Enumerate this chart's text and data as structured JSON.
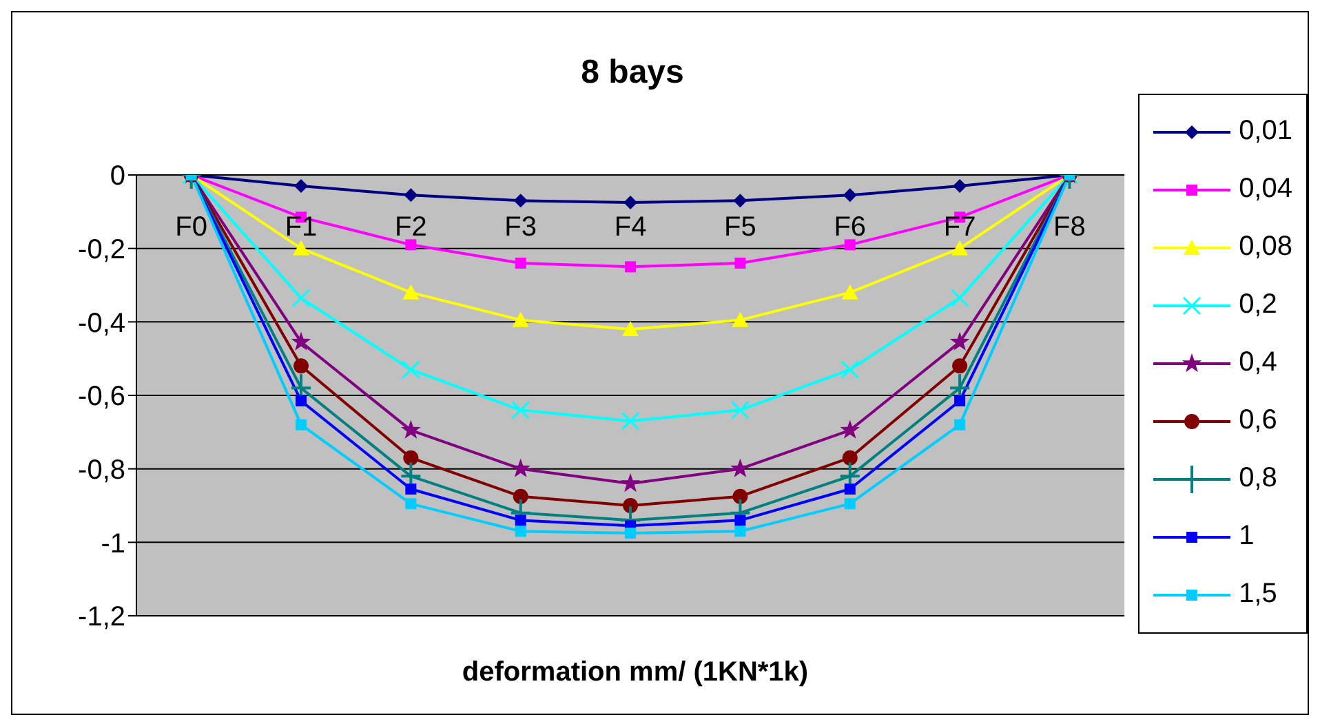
{
  "chart_data": {
    "type": "line",
    "title": "8 bays",
    "xlabel": "deformation mm/ (1KN*1k)",
    "categories": [
      "F0",
      "F1",
      "F2",
      "F3",
      "F4",
      "F5",
      "F6",
      "F7",
      "F8"
    ],
    "ylim": [
      -1.2,
      0
    ],
    "yticks": [
      {
        "value": 0,
        "label": "0"
      },
      {
        "value": -0.2,
        "label": "-0,2"
      },
      {
        "value": -0.4,
        "label": "-0,4"
      },
      {
        "value": -0.6,
        "label": "-0,6"
      },
      {
        "value": -0.8,
        "label": "-0,8"
      },
      {
        "value": -1,
        "label": "-1"
      },
      {
        "value": -1.2,
        "label": "-1,2"
      }
    ],
    "grid": "y",
    "legend": "right",
    "line_style": "solid",
    "series": [
      {
        "name": "0,01",
        "color": "#000080",
        "marker": "diamond",
        "values": [
          0,
          -0.03,
          -0.055,
          -0.07,
          -0.075,
          -0.07,
          -0.055,
          -0.03,
          0
        ]
      },
      {
        "name": "0,04",
        "color": "#ff00ff",
        "marker": "square",
        "values": [
          0,
          -0.115,
          -0.19,
          -0.24,
          -0.25,
          -0.24,
          -0.19,
          -0.115,
          0
        ]
      },
      {
        "name": "0,08",
        "color": "#ffff00",
        "marker": "triangle",
        "values": [
          0,
          -0.2,
          -0.32,
          -0.395,
          -0.42,
          -0.395,
          -0.32,
          -0.2,
          0
        ]
      },
      {
        "name": "0,2",
        "color": "#00ffff",
        "marker": "cross",
        "values": [
          0,
          -0.335,
          -0.53,
          -0.64,
          -0.67,
          -0.64,
          -0.53,
          -0.335,
          0
        ]
      },
      {
        "name": "0,4",
        "color": "#800080",
        "marker": "star",
        "values": [
          0,
          -0.455,
          -0.695,
          -0.8,
          -0.84,
          -0.8,
          -0.695,
          -0.455,
          0
        ]
      },
      {
        "name": "0,6",
        "color": "#800000",
        "marker": "circle",
        "values": [
          0,
          -0.52,
          -0.77,
          -0.875,
          -0.9,
          -0.875,
          -0.77,
          -0.52,
          0
        ]
      },
      {
        "name": "0,8",
        "color": "#008080",
        "marker": "plus",
        "values": [
          0,
          -0.58,
          -0.82,
          -0.92,
          -0.94,
          -0.92,
          -0.82,
          -0.58,
          0
        ]
      },
      {
        "name": "1",
        "color": "#0000ff",
        "marker": "square",
        "values": [
          0,
          -0.615,
          -0.855,
          -0.94,
          -0.955,
          -0.94,
          -0.855,
          -0.615,
          0
        ]
      },
      {
        "name": "1,5",
        "color": "#00ccff",
        "marker": "square",
        "values": [
          0,
          -0.68,
          -0.895,
          -0.97,
          -0.975,
          -0.97,
          -0.895,
          -0.68,
          0
        ]
      }
    ]
  }
}
